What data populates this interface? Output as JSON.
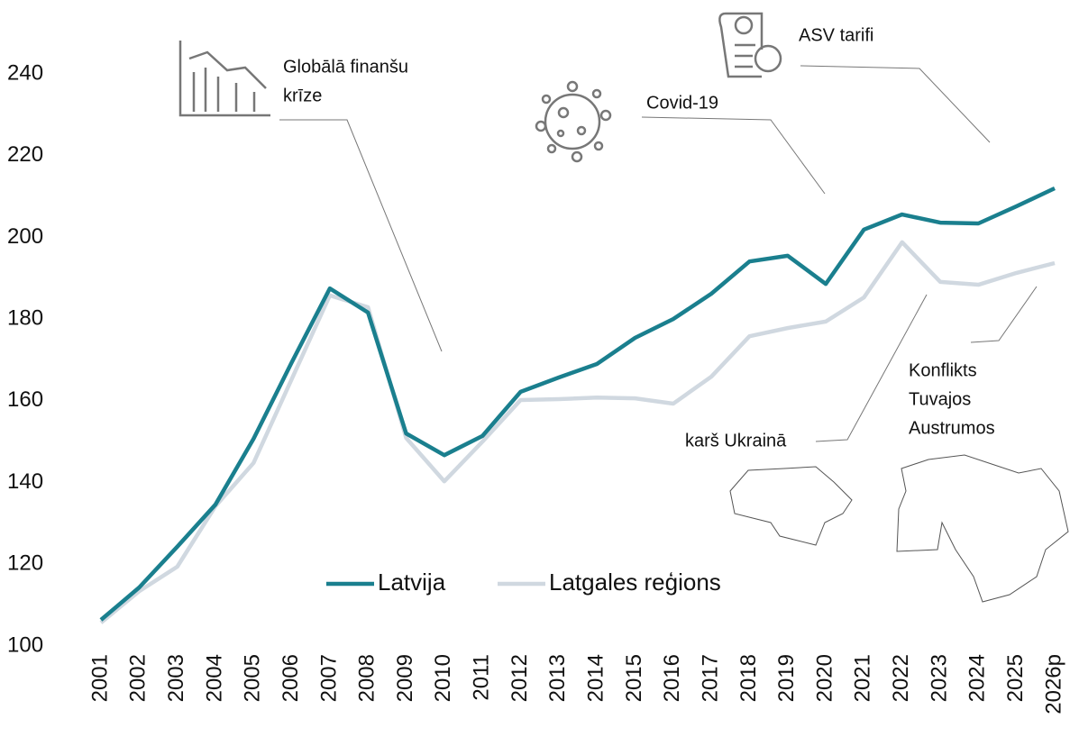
{
  "chart_data": {
    "type": "line",
    "categories": [
      "2001",
      "2002",
      "2003",
      "2004",
      "2005",
      "2006",
      "2007",
      "2008",
      "2009",
      "2010",
      "2011",
      "2012",
      "2013",
      "2014",
      "2015",
      "2016",
      "2017",
      "2018",
      "2019",
      "2020",
      "2021",
      "2022",
      "2023",
      "2024",
      "2025",
      "2026p"
    ],
    "series": [
      {
        "name": "Latvija",
        "color": "#1a7f8e",
        "values": [
          106.4,
          114.3,
          124.3,
          134.6,
          150.7,
          169.4,
          187.5,
          181.6,
          152,
          146.7,
          151.4,
          162.2,
          165.7,
          169,
          175.4,
          180,
          186.2,
          194.1,
          195.5,
          188.6,
          201.9,
          205.6,
          203.6,
          203.4,
          207.6,
          212
        ]
      },
      {
        "name": "Latgales reģions",
        "color": "#d0d8e0",
        "values": [
          105.7,
          113.4,
          119.4,
          134.2,
          144.8,
          165.3,
          185.8,
          182.9,
          150.9,
          140.3,
          150,
          160.2,
          160.4,
          160.8,
          160.6,
          159.3,
          165.9,
          175.8,
          177.8,
          179.4,
          185.3,
          198.8,
          189.1,
          188.4,
          191.3,
          193.7
        ]
      }
    ],
    "ylim": [
      100,
      240
    ],
    "yticks": [
      100,
      120,
      140,
      160,
      180,
      200,
      220,
      240
    ],
    "grid": false,
    "annotations": [
      {
        "lines": [
          "Globālā finanšu",
          "krīze"
        ]
      },
      {
        "lines": [
          "Covid-19"
        ]
      },
      {
        "lines": [
          "ASV tarifi"
        ]
      },
      {
        "lines": [
          "karš Ukrainā"
        ]
      },
      {
        "lines": [
          "Konflikts",
          "Tuvajos",
          "Austrumos"
        ]
      }
    ]
  }
}
